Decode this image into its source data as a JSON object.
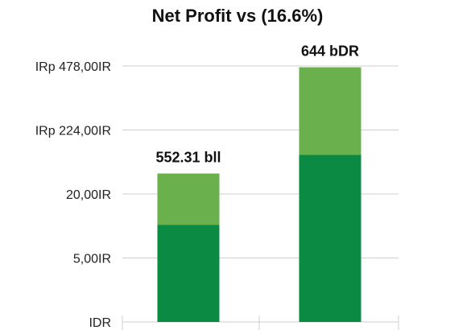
{
  "chart_data": {
    "type": "bar",
    "stacked": true,
    "title": "Net Profit vs (16.6%)",
    "xlabel": "",
    "ylabel": "",
    "grid": true,
    "y_ticks": [
      {
        "label": "IDR",
        "value": 0
      },
      {
        "label": "5,00IR",
        "value": 1
      },
      {
        "label": "20,00IR",
        "value": 2
      },
      {
        "label": "IRp 224,00IR",
        "value": 3
      },
      {
        "label": "IRp 478,00IR",
        "value": 4
      }
    ],
    "ylim": [
      0,
      4
    ],
    "categories": [
      "",
      ""
    ],
    "series": [
      {
        "values": [
          1.52,
          2.61
        ],
        "color": "#0a8a43"
      },
      {
        "values": [
          0.8,
          1.37
        ],
        "color": "#6ab04c"
      }
    ],
    "data_labels": [
      "552.31 bll",
      "644 bDR"
    ]
  }
}
